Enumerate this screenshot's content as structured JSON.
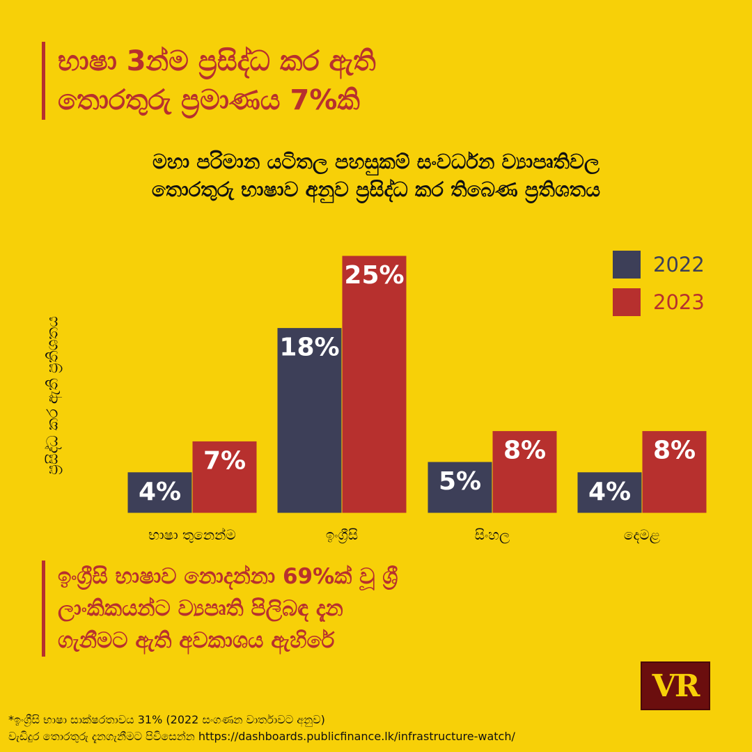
{
  "headline": {
    "line1": "භාෂා 3න්ම ප්‍රසිද්ධ කර ඇති",
    "line2": "තොරතුරු ප්‍රමාණය 7%කි"
  },
  "subtitle": {
    "line1": "මහා පරිමාන යටිතල පහසුකම් සංවර්ධන ව්‍යාපෘතිවල",
    "line2": "තොරතුරු භාෂාව අනුව ප්‍රසිද්ධ කර තිබෙණ ප්‍රතිශතය"
  },
  "colors": {
    "background": "#F7D008",
    "series_2022": "#3D3F58",
    "series_2023": "#B7302E",
    "accent": "#B7302E"
  },
  "chart_data": {
    "type": "bar",
    "ylabel": "ප්‍රසිද්ධ කර ඇති ප්‍රතිශතය",
    "categories": [
      "භාෂා තුනෙන්ම",
      "ඉංග්‍රීසි",
      "සිංහල",
      "දෙමළ"
    ],
    "series": [
      {
        "name": "2022",
        "values": [
          4,
          18,
          5,
          4
        ],
        "labels": [
          "4%",
          "18%",
          "5%",
          "4%"
        ],
        "color": "#3D3F58"
      },
      {
        "name": "2023",
        "values": [
          7,
          25,
          8,
          8
        ],
        "labels": [
          "7%",
          "25%",
          "8%",
          "8%"
        ],
        "color": "#B7302E"
      }
    ],
    "ylim": [
      0,
      25
    ],
    "grid": false,
    "legend": "top-right"
  },
  "callout": {
    "line1": "ඉංග්‍රීසි භාෂාව නොදන්නා 69%ක් වූ ශ්‍රී",
    "line2": "ලාංකිකයන්ට ව්‍යපෘති පිලිබඳ දැන",
    "line3": "ගැනීමට ඇති අවකාශය ඇහිරේ"
  },
  "logo": {
    "text": "VR"
  },
  "footer": {
    "note": "*ඉංග්‍රීසි භාෂා සාක්ෂරතාවය 31% (2022 සංගණන වාර්තාවට අනුව)",
    "link": "වැඩිදුර තොරතුරු දැනගැනීමට පිවිසෙන්න https://dashboards.publicfinance.lk/infrastructure-watch/"
  }
}
